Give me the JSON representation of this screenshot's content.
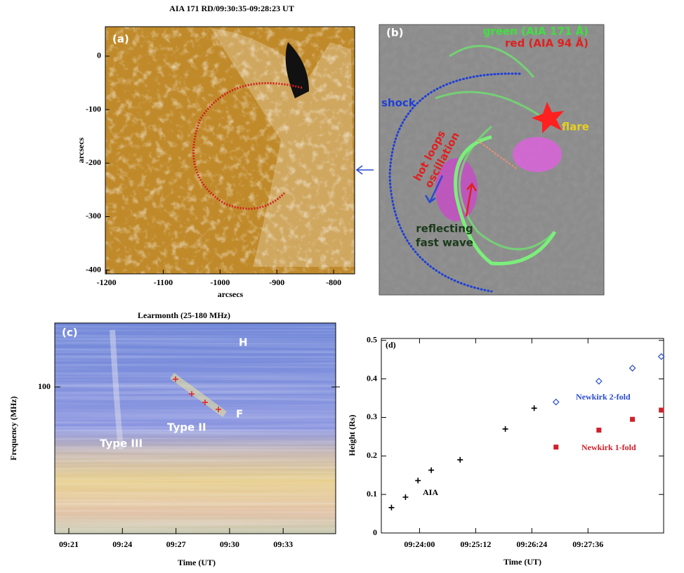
{
  "panel_a": {
    "title": "AIA 171 RD/09:30:35-09:28:23 UT",
    "label": "(a)",
    "xlabel": "arcsecs",
    "ylabel": "arcsecs",
    "xlim": [
      -1202,
      -763
    ],
    "ylim": [
      -407,
      55
    ],
    "xticks": [
      -1200,
      -1100,
      -1000,
      -900,
      -800
    ],
    "yticks": [
      0,
      -100,
      -200,
      -300,
      -400
    ]
  },
  "panel_b": {
    "label": "(b)",
    "legend": [
      "green (AIA 171 Å)",
      "red (AIA 94 Å)"
    ],
    "shock": "shock",
    "flare": "flare",
    "hot_loops": [
      "hot loops",
      "oscillation"
    ],
    "fast_wave": [
      "reflecting",
      "fast wave"
    ]
  },
  "panel_c": {
    "title": "Learmonth (25-180 MHz)",
    "label": "(c)",
    "ylabel": "Frequency (MHz)",
    "xlabel": "Time (UT)",
    "yticks": [
      100
    ],
    "xticks": [
      "09:21",
      "09:24",
      "09:27",
      "09:30",
      "09:33"
    ],
    "annotations": [
      "H",
      "F",
      "Type II",
      "Type III"
    ]
  },
  "chart_data": {
    "type": "scatter",
    "label": "(d)",
    "xlabel": "Time (UT)",
    "ylabel": "Height (Rs)",
    "xlim": [
      1391,
      1753
    ],
    "ylim": [
      0,
      0.505
    ],
    "xticks": [
      {
        "value": 1440,
        "label": "09:24:00"
      },
      {
        "value": 1512,
        "label": "09:25:12"
      },
      {
        "value": 1584,
        "label": "09:26:24"
      },
      {
        "value": 1656,
        "label": "09:27:36"
      }
    ],
    "yticks": [
      0,
      0.1,
      0.2,
      0.3,
      0.4,
      0.5
    ],
    "series": [
      {
        "name": "AIA",
        "color": "#000000",
        "marker": "plus",
        "x": [
          1404,
          1422,
          1438,
          1455,
          1492,
          1550,
          1587
        ],
        "values": [
          0.066,
          0.093,
          0.136,
          0.163,
          0.19,
          0.27,
          0.324
        ]
      },
      {
        "name": "Newkirk 2-fold",
        "color": "#2a4bd0",
        "marker": "diamond",
        "x": [
          1615,
          1670,
          1713,
          1750
        ],
        "values": [
          0.34,
          0.394,
          0.428,
          0.458
        ]
      },
      {
        "name": "Newkirk 1-fold",
        "color": "#d0202a",
        "marker": "square",
        "x": [
          1615,
          1670,
          1713,
          1750
        ],
        "values": [
          0.223,
          0.267,
          0.295,
          0.319
        ]
      }
    ]
  }
}
